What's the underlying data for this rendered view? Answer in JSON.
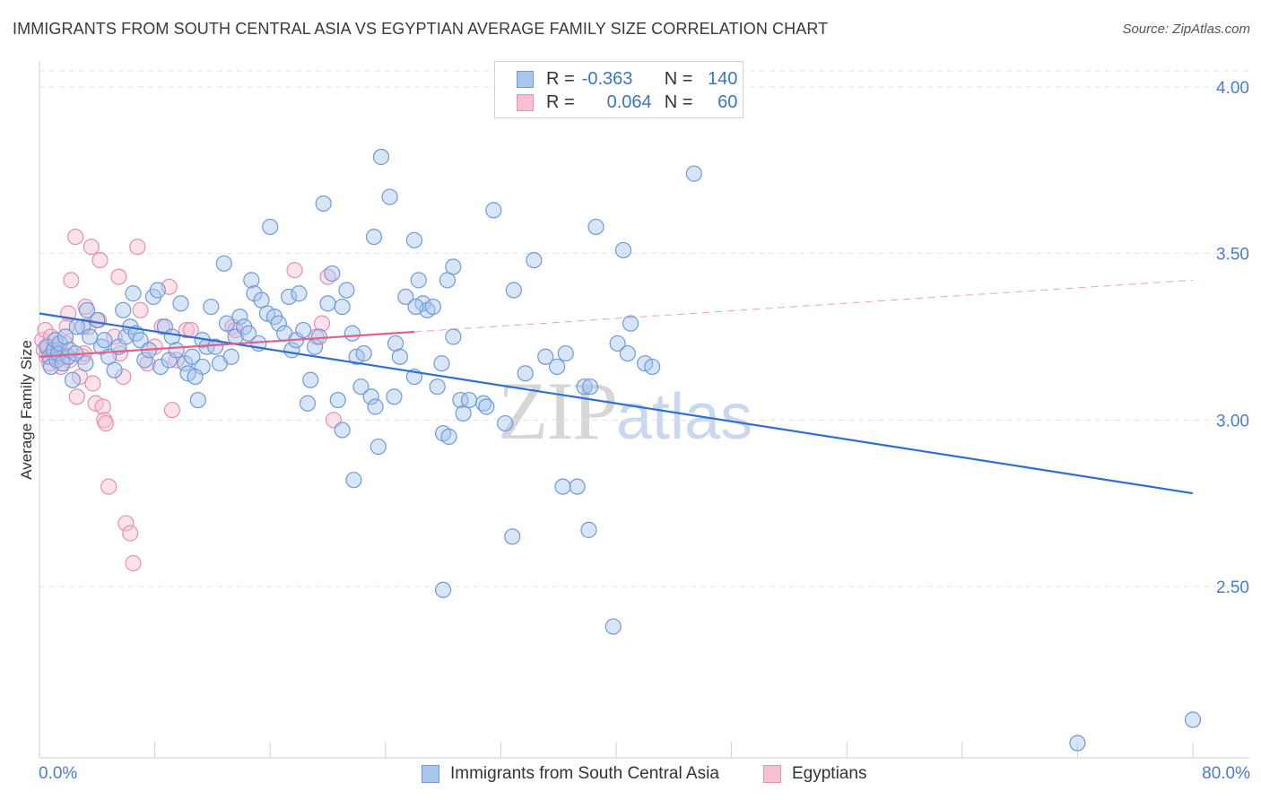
{
  "title": "IMMIGRANTS FROM SOUTH CENTRAL ASIA VS EGYPTIAN AVERAGE FAMILY SIZE CORRELATION CHART",
  "source": "Source: ZipAtlas.com",
  "watermark": {
    "zip": "ZIP",
    "atlas": "atlas"
  },
  "legend": {
    "r_label": "R =",
    "n_label": "N =",
    "blue": {
      "r": "-0.363",
      "n": "140"
    },
    "pink": {
      "r": "0.064",
      "n": "60"
    }
  },
  "colors": {
    "blue_fill": "#a9c6ee",
    "blue_stroke": "#6f9ad8",
    "blue_line": "#2f6fd0",
    "pink_fill": "#f6bfd2",
    "pink_stroke": "#e890ae",
    "pink_line": "#e0608c",
    "grid": "#e3e3e3",
    "tick": "#4a7cc9"
  },
  "chart_data": {
    "type": "scatter",
    "title": "IMMIGRANTS FROM SOUTH CENTRAL ASIA VS EGYPTIAN AVERAGE FAMILY SIZE CORRELATION CHART",
    "xlabel": "",
    "ylabel": "Average Family Size",
    "xlim": [
      0,
      80
    ],
    "ylim": [
      2.0,
      4.1
    ],
    "x_tick_labels": [
      "0.0%",
      "80.0%"
    ],
    "y_ticks": [
      2.5,
      3.0,
      3.5,
      4.0
    ],
    "y_tick_labels": [
      "2.50",
      "3.00",
      "3.50",
      "4.00"
    ],
    "grid": true,
    "legend_position": "top-center",
    "series": [
      {
        "name": "Immigrants from South Central Asia",
        "color": "#6f9ad8",
        "trend": {
          "x0": 0,
          "y0": 3.32,
          "x1": 80,
          "y1": 2.78
        },
        "points": [
          [
            0.5,
            3.22
          ],
          [
            0.7,
            3.19
          ],
          [
            0.8,
            3.16
          ],
          [
            1.0,
            3.21
          ],
          [
            1.1,
            3.24
          ],
          [
            1.2,
            3.18
          ],
          [
            1.3,
            3.2
          ],
          [
            1.4,
            3.23
          ],
          [
            1.6,
            3.17
          ],
          [
            1.8,
            3.25
          ],
          [
            2.0,
            3.19
          ],
          [
            2.1,
            3.21
          ],
          [
            2.3,
            3.12
          ],
          [
            2.5,
            3.2
          ],
          [
            3.0,
            3.28
          ],
          [
            3.2,
            3.17
          ],
          [
            3.5,
            3.25
          ],
          [
            4.0,
            3.3
          ],
          [
            4.3,
            3.22
          ],
          [
            4.5,
            3.24
          ],
          [
            4.8,
            3.19
          ],
          [
            5.2,
            3.15
          ],
          [
            5.5,
            3.22
          ],
          [
            5.8,
            3.33
          ],
          [
            6.0,
            3.25
          ],
          [
            6.3,
            3.28
          ],
          [
            6.5,
            3.38
          ],
          [
            6.7,
            3.26
          ],
          [
            7.0,
            3.24
          ],
          [
            7.3,
            3.18
          ],
          [
            7.6,
            3.21
          ],
          [
            7.9,
            3.37
          ],
          [
            8.2,
            3.39
          ],
          [
            8.4,
            3.16
          ],
          [
            8.7,
            3.28
          ],
          [
            9.0,
            3.18
          ],
          [
            9.2,
            3.25
          ],
          [
            9.5,
            3.21
          ],
          [
            9.8,
            3.35
          ],
          [
            10.1,
            3.17
          ],
          [
            10.3,
            3.14
          ],
          [
            10.6,
            3.19
          ],
          [
            11.0,
            3.06
          ],
          [
            11.3,
            3.24
          ],
          [
            11.6,
            3.22
          ],
          [
            11.9,
            3.34
          ],
          [
            12.2,
            3.22
          ],
          [
            12.5,
            3.17
          ],
          [
            12.8,
            3.47
          ],
          [
            13.0,
            3.29
          ],
          [
            13.3,
            3.19
          ],
          [
            13.6,
            3.25
          ],
          [
            13.9,
            3.31
          ],
          [
            14.2,
            3.28
          ],
          [
            14.5,
            3.26
          ],
          [
            14.7,
            3.42
          ],
          [
            14.9,
            3.38
          ],
          [
            15.2,
            3.23
          ],
          [
            15.4,
            3.36
          ],
          [
            15.8,
            3.32
          ],
          [
            16.0,
            3.58
          ],
          [
            16.3,
            3.31
          ],
          [
            16.6,
            3.29
          ],
          [
            17.0,
            3.26
          ],
          [
            17.3,
            3.37
          ],
          [
            17.5,
            3.21
          ],
          [
            17.8,
            3.24
          ],
          [
            18.0,
            3.38
          ],
          [
            18.3,
            3.27
          ],
          [
            18.6,
            3.05
          ],
          [
            18.8,
            3.12
          ],
          [
            19.1,
            3.22
          ],
          [
            19.4,
            3.25
          ],
          [
            19.7,
            3.65
          ],
          [
            20.0,
            3.35
          ],
          [
            20.3,
            3.44
          ],
          [
            20.7,
            3.06
          ],
          [
            21.0,
            3.34
          ],
          [
            21.3,
            3.39
          ],
          [
            21.7,
            3.26
          ],
          [
            22.0,
            3.19
          ],
          [
            22.3,
            3.1
          ],
          [
            22.5,
            3.2
          ],
          [
            23.0,
            3.07
          ],
          [
            23.3,
            3.04
          ],
          [
            23.5,
            2.92
          ],
          [
            23.7,
            3.79
          ],
          [
            24.3,
            3.67
          ],
          [
            24.7,
            3.23
          ],
          [
            25.0,
            3.19
          ],
          [
            25.4,
            3.37
          ],
          [
            26.0,
            3.13
          ],
          [
            26.3,
            3.42
          ],
          [
            26.6,
            3.35
          ],
          [
            26.9,
            3.33
          ],
          [
            27.3,
            3.34
          ],
          [
            27.6,
            3.1
          ],
          [
            28.0,
            2.96
          ],
          [
            28.3,
            3.42
          ],
          [
            28.7,
            3.46
          ],
          [
            29.2,
            3.06
          ],
          [
            29.4,
            3.02
          ],
          [
            27.9,
            3.17
          ],
          [
            30.8,
            3.05
          ],
          [
            31.5,
            3.63
          ],
          [
            32.3,
            2.99
          ],
          [
            32.9,
            3.39
          ],
          [
            33.7,
            3.14
          ],
          [
            34.3,
            3.48
          ],
          [
            35.1,
            3.19
          ],
          [
            35.9,
            3.16
          ],
          [
            36.5,
            3.2
          ],
          [
            37.3,
            2.8
          ],
          [
            38.6,
            3.58
          ],
          [
            40.1,
            3.23
          ],
          [
            41.0,
            3.29
          ],
          [
            40.8,
            3.2
          ],
          [
            42.0,
            3.17
          ],
          [
            42.5,
            3.16
          ],
          [
            45.4,
            3.74
          ],
          [
            21.0,
            2.97
          ],
          [
            21.8,
            2.82
          ],
          [
            28.0,
            2.49
          ],
          [
            32.8,
            2.65
          ],
          [
            38.1,
            2.67
          ],
          [
            36.3,
            2.8
          ],
          [
            39.8,
            2.38
          ],
          [
            37.8,
            3.1
          ],
          [
            38.2,
            3.1
          ],
          [
            28.4,
            2.95
          ],
          [
            31.0,
            3.04
          ],
          [
            24.6,
            3.07
          ],
          [
            23.2,
            3.55
          ],
          [
            26.1,
            3.34
          ],
          [
            28.7,
            3.25
          ],
          [
            29.8,
            3.06
          ],
          [
            40.5,
            3.51
          ],
          [
            26.0,
            3.54
          ],
          [
            11.3,
            3.16
          ],
          [
            10.8,
            3.13
          ],
          [
            72.0,
            2.03
          ],
          [
            80.0,
            2.1
          ],
          [
            3.3,
            3.33
          ],
          [
            2.6,
            3.28
          ]
        ]
      },
      {
        "name": "Egyptians",
        "color": "#e890ae",
        "trend": {
          "x0": 0,
          "y0": 3.19,
          "x1": 80,
          "y1": 3.42
        },
        "trend_solid_until": 26,
        "points": [
          [
            0.2,
            3.24
          ],
          [
            0.3,
            3.21
          ],
          [
            0.4,
            3.27
          ],
          [
            0.5,
            3.19
          ],
          [
            0.6,
            3.22
          ],
          [
            0.7,
            3.17
          ],
          [
            0.8,
            3.25
          ],
          [
            0.9,
            3.2
          ],
          [
            1.0,
            3.22
          ],
          [
            1.1,
            3.24
          ],
          [
            1.2,
            3.18
          ],
          [
            1.3,
            3.2
          ],
          [
            1.4,
            3.21
          ],
          [
            1.5,
            3.16
          ],
          [
            1.6,
            3.19
          ],
          [
            1.8,
            3.23
          ],
          [
            1.9,
            3.28
          ],
          [
            2.0,
            3.32
          ],
          [
            2.1,
            3.18
          ],
          [
            2.2,
            3.42
          ],
          [
            2.5,
            3.55
          ],
          [
            2.6,
            3.07
          ],
          [
            2.8,
            3.13
          ],
          [
            3.0,
            3.19
          ],
          [
            3.1,
            3.2
          ],
          [
            3.2,
            3.34
          ],
          [
            3.4,
            3.28
          ],
          [
            3.6,
            3.52
          ],
          [
            3.7,
            3.11
          ],
          [
            3.9,
            3.05
          ],
          [
            4.1,
            3.3
          ],
          [
            4.2,
            3.48
          ],
          [
            4.4,
            3.04
          ],
          [
            4.5,
            3.0
          ],
          [
            4.6,
            2.99
          ],
          [
            4.8,
            2.8
          ],
          [
            5.2,
            3.25
          ],
          [
            5.5,
            3.43
          ],
          [
            5.6,
            3.2
          ],
          [
            5.8,
            3.13
          ],
          [
            6.0,
            2.69
          ],
          [
            6.3,
            2.66
          ],
          [
            6.5,
            2.57
          ],
          [
            6.8,
            3.52
          ],
          [
            7.0,
            3.33
          ],
          [
            7.5,
            3.17
          ],
          [
            8.0,
            3.22
          ],
          [
            8.5,
            3.28
          ],
          [
            9.0,
            3.4
          ],
          [
            9.2,
            3.03
          ],
          [
            9.5,
            3.18
          ],
          [
            10.2,
            3.27
          ],
          [
            10.5,
            3.27
          ],
          [
            13.4,
            3.28
          ],
          [
            13.6,
            3.27
          ],
          [
            17.7,
            3.45
          ],
          [
            19.2,
            3.25
          ],
          [
            19.6,
            3.29
          ],
          [
            20.0,
            3.43
          ],
          [
            20.4,
            3.0
          ]
        ]
      }
    ]
  },
  "bottom_legend": {
    "blue_label": "Immigrants from South Central Asia",
    "pink_label": "Egyptians"
  },
  "axes": {
    "x_min_label": "0.0%",
    "x_max_label": "80.0%",
    "ylabel": "Average Family Size"
  }
}
